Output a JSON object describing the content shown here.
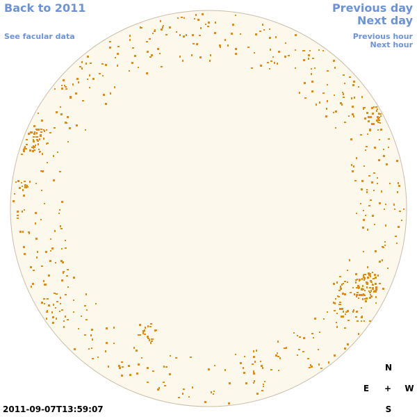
{
  "nav": {
    "back": "Back to 2011",
    "facular": "See facular data",
    "previous_day": "Previous day",
    "next_day": "Next day",
    "previous_hour": "Previous hour",
    "next_hour": "Next hour"
  },
  "timestamp": "2011-09-07T13:59:07",
  "compass": {
    "north": "N",
    "east": "E",
    "center": "+",
    "west": "W",
    "south": "S"
  }
}
